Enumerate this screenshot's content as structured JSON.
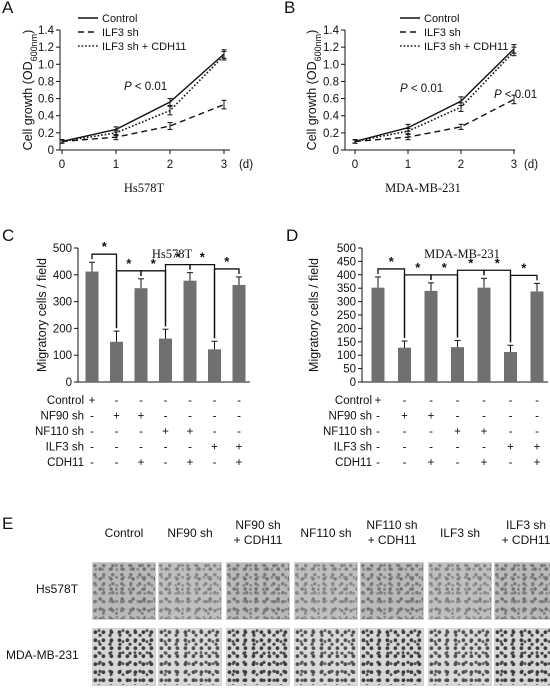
{
  "panel_letters": [
    "A",
    "B",
    "C",
    "D",
    "E"
  ],
  "chart_data": [
    {
      "panel": "A",
      "type": "line",
      "title": "Hs578T",
      "ylabel": "Cell growth (OD600nm)",
      "xlabel": "(d)",
      "x": [
        0,
        1,
        2,
        3
      ],
      "ylim": [
        0,
        1.4
      ],
      "yticks": [
        "0",
        "0.2",
        "0.4",
        "0.6",
        "0.8",
        "1.0",
        "1.2",
        "1.4"
      ],
      "annotations": [
        "P < 0.01"
      ],
      "series": [
        {
          "name": "Control",
          "style": "solid",
          "values": [
            0.1,
            0.24,
            0.56,
            1.12
          ],
          "err": [
            0.02,
            0.03,
            0.04,
            0.05
          ]
        },
        {
          "name": "ILF3 sh",
          "style": "dashed",
          "values": [
            0.1,
            0.15,
            0.28,
            0.53
          ],
          "err": [
            0.02,
            0.03,
            0.04,
            0.05
          ]
        },
        {
          "name": "ILF3 sh + CDH11",
          "style": "dotted",
          "values": [
            0.1,
            0.2,
            0.46,
            1.1
          ],
          "err": [
            0.02,
            0.03,
            0.05,
            0.05
          ]
        }
      ]
    },
    {
      "panel": "B",
      "type": "line",
      "title": "MDA-MB-231",
      "ylabel": "Cell growth (OD600nm)",
      "xlabel": "(d)",
      "x": [
        0,
        1,
        2,
        3
      ],
      "ylim": [
        0,
        1.4
      ],
      "yticks": [
        "0",
        "0.2",
        "0.4",
        "0.6",
        "0.8",
        "1.0",
        "1.2",
        "1.4"
      ],
      "annotations": [
        "P < 0.01",
        "P < 0.01"
      ],
      "series": [
        {
          "name": "Control",
          "style": "solid",
          "values": [
            0.1,
            0.26,
            0.57,
            1.18
          ],
          "err": [
            0.02,
            0.04,
            0.05,
            0.05
          ]
        },
        {
          "name": "ILF3 sh",
          "style": "dashed",
          "values": [
            0.1,
            0.15,
            0.27,
            0.59
          ],
          "err": [
            0.02,
            0.03,
            0.03,
            0.05
          ]
        },
        {
          "name": "ILF3 sh + CDH11",
          "style": "dotted",
          "values": [
            0.1,
            0.22,
            0.5,
            1.15
          ],
          "err": [
            0.02,
            0.03,
            0.05,
            0.05
          ]
        }
      ]
    },
    {
      "panel": "C",
      "type": "bar",
      "title": "Hs578T",
      "ylabel": "Migratory cells / field",
      "ylim": [
        0,
        500
      ],
      "yticks": [
        "0",
        "100",
        "200",
        "300",
        "400",
        "500"
      ],
      "values": [
        412,
        150,
        350,
        162,
        378,
        122,
        362
      ],
      "err": [
        35,
        40,
        35,
        35,
        30,
        30,
        30
      ],
      "significance": [
        "*",
        "*",
        "*",
        "*",
        "*",
        "*"
      ],
      "row_labels": [
        "Control",
        "NF90 sh",
        "NF110 sh",
        "ILF3 sh",
        "CDH11"
      ],
      "row_marks": [
        [
          "+",
          "-",
          "-",
          "-",
          "-",
          "-",
          "-"
        ],
        [
          "-",
          "+",
          "+",
          "-",
          "-",
          "-",
          "-"
        ],
        [
          "-",
          "-",
          "-",
          "+",
          "+",
          "-",
          "-"
        ],
        [
          "-",
          "-",
          "-",
          "-",
          "-",
          "+",
          "+"
        ],
        [
          "-",
          "-",
          "+",
          "-",
          "+",
          "-",
          "+"
        ]
      ]
    },
    {
      "panel": "D",
      "type": "bar",
      "title": "MDA-MB-231",
      "ylabel": "Migratory cells / field",
      "ylim": [
        0,
        500
      ],
      "yticks": [
        "0",
        "50",
        "100",
        "150",
        "200",
        "250",
        "300",
        "350",
        "400",
        "450",
        "500"
      ],
      "values": [
        352,
        128,
        340,
        130,
        352,
        112,
        338
      ],
      "err": [
        40,
        25,
        30,
        25,
        35,
        25,
        30
      ],
      "significance": [
        "*",
        "*",
        "*",
        "*",
        "*",
        "*"
      ],
      "row_labels": [
        "Control",
        "NF90 sh",
        "NF110 sh",
        "ILF3 sh",
        "CDH11"
      ],
      "row_marks": [
        [
          "+",
          "-",
          "-",
          "-",
          "-",
          "-",
          "-"
        ],
        [
          "-",
          "+",
          "+",
          "-",
          "-",
          "-",
          "-"
        ],
        [
          "-",
          "-",
          "-",
          "+",
          "+",
          "-",
          "-"
        ],
        [
          "-",
          "-",
          "-",
          "-",
          "-",
          "+",
          "+"
        ],
        [
          "-",
          "-",
          "+",
          "-",
          "+",
          "-",
          "+"
        ]
      ]
    }
  ],
  "panel_e": {
    "columns": [
      "Control",
      "NF90 sh",
      "NF90 sh\n+ CDH11",
      "NF110 sh",
      "NF110 sh\n+ CDH11",
      "ILF3 sh",
      "ILF3 sh\n+ CDH11"
    ],
    "rows": [
      "Hs578T",
      "MDA-MB-231"
    ]
  },
  "colors": {
    "bar": "#707070",
    "line": "#111111"
  }
}
